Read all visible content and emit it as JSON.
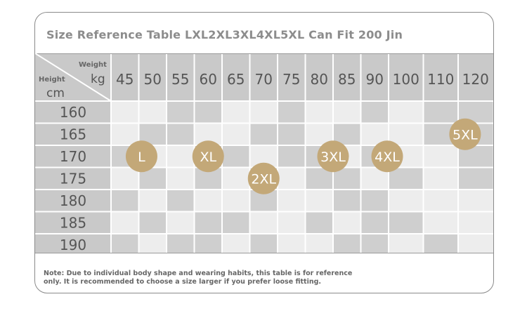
{
  "title": "Size Reference Table LXL2XL3XL4XL5XL Can Fit 200 Jin",
  "corner": {
    "weight_label": "Weight",
    "weight_unit": "kg",
    "height_label": "Height",
    "height_unit": "cm"
  },
  "weights": [
    "45",
    "50",
    "55",
    "60",
    "65",
    "70",
    "75",
    "80",
    "85",
    "90",
    "100",
    "110",
    "120"
  ],
  "heights": [
    "160",
    "165",
    "170",
    "175",
    "180",
    "185",
    "190"
  ],
  "sizes": [
    {
      "label": "L",
      "weight_col": 1.1,
      "height_row": 2.5
    },
    {
      "label": "XL",
      "weight_col": 3.5,
      "height_row": 2.5
    },
    {
      "label": "2XL",
      "weight_col": 5.5,
      "height_row": 3.5
    },
    {
      "label": "3XL",
      "weight_col": 8.0,
      "height_row": 2.5
    },
    {
      "label": "4XL",
      "weight_col": 9.95,
      "height_row": 2.5
    },
    {
      "label": "5XL",
      "weight_col": 12.2,
      "height_row": 1.5
    }
  ],
  "note": "Note: Due to individual body shape and wearing habits, this table is for reference\n only. It is recommended to choose a size larger if you prefer loose fitting.",
  "colors": {
    "header_bg": "#c9c9c9",
    "cell_dark": "#cfcfcf",
    "cell_light": "#ededed",
    "badge": "#c3a878",
    "text": "#555555"
  }
}
